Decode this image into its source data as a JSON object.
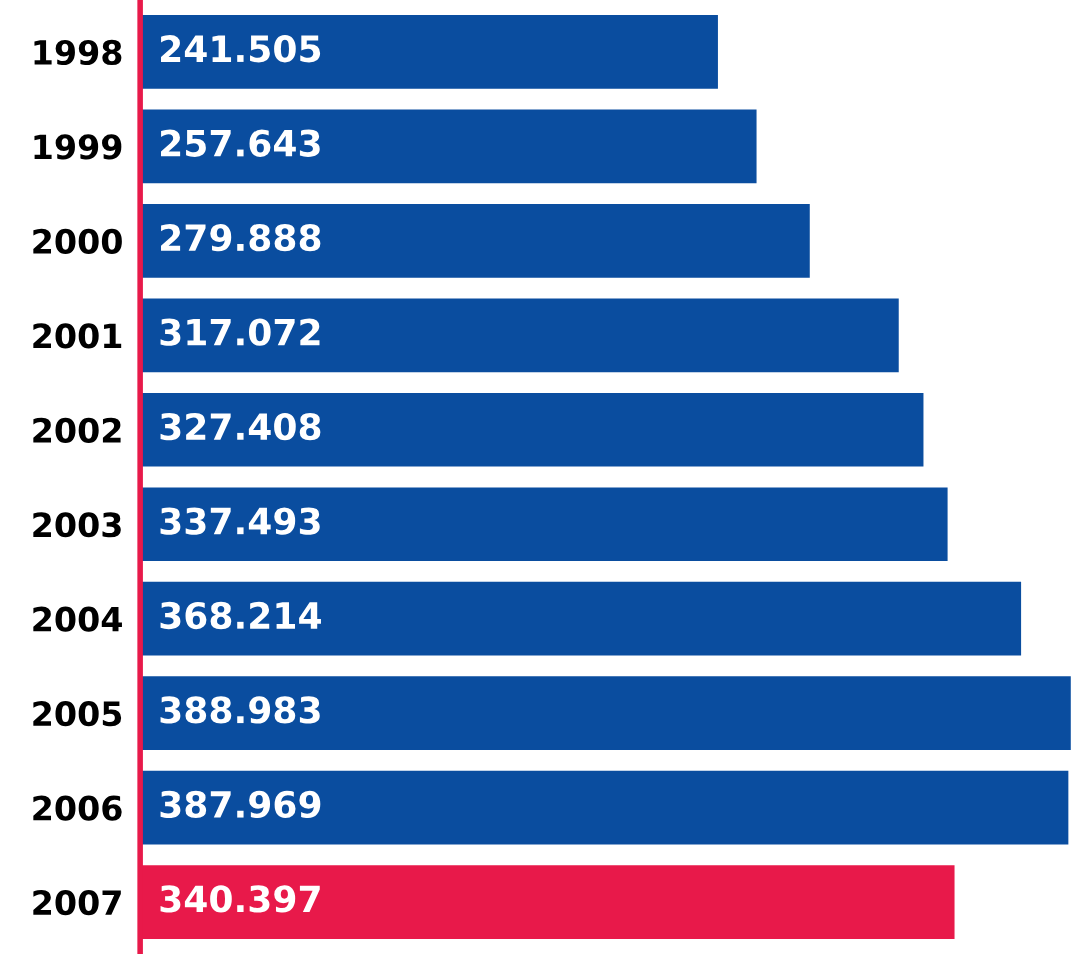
{
  "chart_data": {
    "type": "bar",
    "orientation": "horizontal",
    "categories": [
      "1998",
      "1999",
      "2000",
      "2001",
      "2002",
      "2003",
      "2004",
      "2005",
      "2006",
      "2007"
    ],
    "values": [
      241.505,
      257.643,
      279.888,
      317.072,
      327.408,
      337.493,
      368.214,
      388.983,
      387.969,
      340.397
    ],
    "colors": [
      "#0a4d9f",
      "#0a4d9f",
      "#0a4d9f",
      "#0a4d9f",
      "#0a4d9f",
      "#0a4d9f",
      "#0a4d9f",
      "#0a4d9f",
      "#0a4d9f",
      "#e8194a"
    ],
    "xlim": [
      0,
      392
    ],
    "data_labels": true,
    "grid": false,
    "legend": false
  }
}
